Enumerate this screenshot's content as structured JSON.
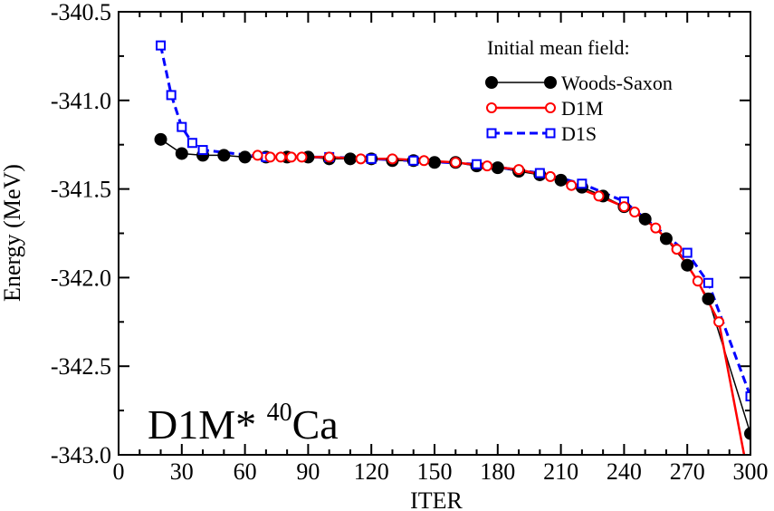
{
  "chart_data": {
    "type": "line",
    "title": "",
    "xlabel": "ITER",
    "ylabel": "Energy (MeV)",
    "xlim": [
      0,
      300
    ],
    "ylim": [
      -343.0,
      -340.5
    ],
    "x_ticks": [
      0,
      30,
      60,
      90,
      120,
      150,
      180,
      210,
      240,
      270,
      300
    ],
    "y_ticks": [
      -343.0,
      -342.5,
      -342.0,
      -341.5,
      -341.0,
      -340.5
    ],
    "y_tick_labels": [
      "-343.0",
      "-342.5",
      "-342.0",
      "-341.5",
      "-341.0",
      "-340.5"
    ],
    "legend_title": "Initial mean field:",
    "legend_position": "top-right",
    "annotation": {
      "main": "D1M* ",
      "superscript": "40",
      "element": "Ca"
    },
    "series": [
      {
        "name": "Woods-Saxon",
        "color": "#000000",
        "marker": "filled-circle",
        "line": "solid",
        "x": [
          20,
          30,
          40,
          50,
          60,
          70,
          80,
          90,
          100,
          110,
          120,
          130,
          140,
          150,
          160,
          170,
          180,
          190,
          200,
          210,
          220,
          230,
          240,
          250,
          260,
          270,
          280,
          300
        ],
        "y": [
          -341.22,
          -341.3,
          -341.31,
          -341.31,
          -341.32,
          -341.32,
          -341.32,
          -341.32,
          -341.33,
          -341.33,
          -341.33,
          -341.34,
          -341.34,
          -341.35,
          -341.35,
          -341.37,
          -341.38,
          -341.4,
          -341.42,
          -341.45,
          -341.49,
          -341.54,
          -341.6,
          -341.67,
          -341.78,
          -341.93,
          -342.12,
          -342.88
        ]
      },
      {
        "name": "D1M",
        "color": "#ff0000",
        "marker": "open-circle",
        "line": "solid",
        "x": [
          66,
          72,
          77,
          82,
          87,
          100,
          115,
          130,
          145,
          160,
          175,
          190,
          205,
          215,
          228,
          240,
          245,
          255,
          265,
          275,
          285,
          297
        ],
        "y": [
          -341.31,
          -341.32,
          -341.32,
          -341.32,
          -341.32,
          -341.32,
          -341.33,
          -341.33,
          -341.34,
          -341.35,
          -341.37,
          -341.39,
          -341.43,
          -341.48,
          -341.54,
          -341.6,
          -341.63,
          -341.72,
          -341.84,
          -342.02,
          -342.25,
          -343.0
        ]
      },
      {
        "name": "D1S",
        "color": "#0000ff",
        "marker": "open-square",
        "line": "dashed",
        "x": [
          20,
          25,
          30,
          35,
          40,
          70,
          100,
          120,
          140,
          170,
          200,
          220,
          240,
          270,
          280,
          300
        ],
        "y": [
          -340.69,
          -340.97,
          -341.15,
          -341.24,
          -341.28,
          -341.32,
          -341.32,
          -341.33,
          -341.34,
          -341.36,
          -341.41,
          -341.47,
          -341.57,
          -341.86,
          -342.03,
          -342.67
        ]
      }
    ]
  }
}
